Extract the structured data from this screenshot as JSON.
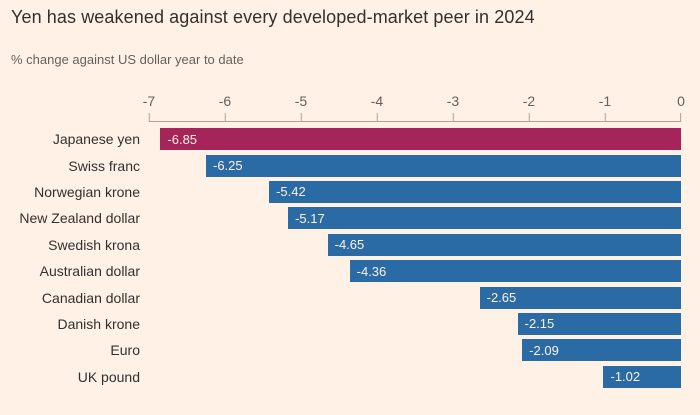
{
  "title": "Yen has weakened against every developed-market peer in 2024",
  "subtitle": "% change against US dollar year to date",
  "chart_data": {
    "type": "bar",
    "orientation": "horizontal",
    "title": "Yen has weakened against every developed-market peer in 2024",
    "subtitle": "% change against US dollar year to date",
    "categories": [
      "Japanese yen",
      "Swiss franc",
      "Norwegian krone",
      "New Zealand dollar",
      "Swedish krona",
      "Australian dollar",
      "Canadian dollar",
      "Danish krone",
      "Euro",
      "UK pound"
    ],
    "values": [
      -6.85,
      -6.25,
      -5.42,
      -5.17,
      -4.65,
      -4.36,
      -2.65,
      -2.15,
      -2.09,
      -1.02
    ],
    "value_labels": [
      "-6.85",
      "-6.25",
      "-5.42",
      "-5.17",
      "-4.65",
      "-4.36",
      "-2.65",
      "-2.15",
      "-2.09",
      "-1.02"
    ],
    "xlim": [
      -7,
      0
    ],
    "tick_values": [
      -7,
      -6,
      -5,
      -4,
      -3,
      -2,
      -1,
      0
    ],
    "tick_labels": [
      "-7",
      "-6",
      "-5",
      "-4",
      "-3",
      "-2",
      "-1",
      "0"
    ],
    "highlight_category": "Japanese yen",
    "grid": false,
    "legend": false,
    "colors": {
      "highlight_bar": "#A52459",
      "default_bar": "#2A6BA6",
      "background": "#FFF1E5",
      "title_text": "#33302E",
      "subtitle_text": "#66605C",
      "axis_text": "#66605C",
      "axis_line": "#ADA195",
      "bar_label_text": "#FFF1E5"
    }
  }
}
